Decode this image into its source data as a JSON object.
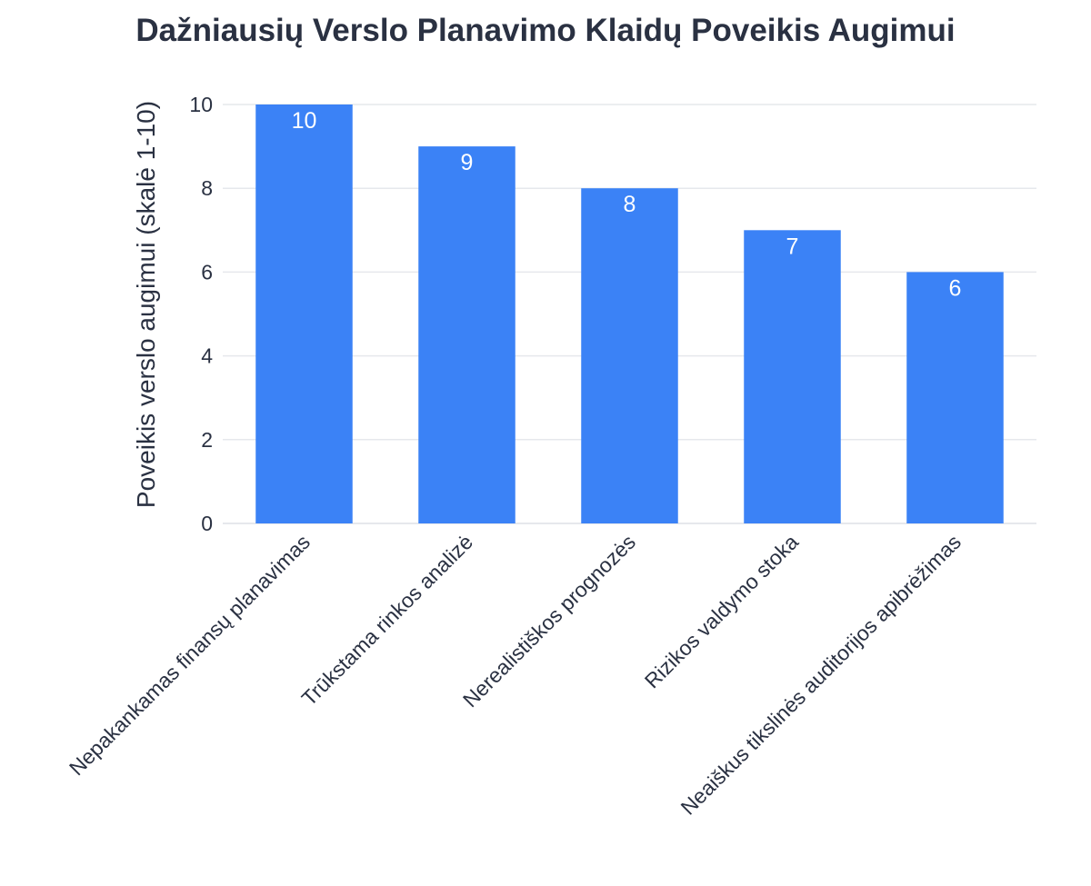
{
  "chart_data": {
    "type": "bar",
    "title": "Dažniausių Verslo Planavimo Klaidų Poveikis Augimui",
    "xlabel": "",
    "ylabel": "Poveikis verslo augimui (skalė 1-10)",
    "categories": [
      "Nepakankamas finansų planavimas",
      "Trūkstama rinkos analizė",
      "Nerealistiškos prognozės",
      "Rizikos valdymo stoka",
      "Neaiškus tikslinės auditorijos apibrėžimas"
    ],
    "values": [
      10,
      9,
      8,
      7,
      6
    ],
    "ylim": [
      0,
      10
    ],
    "yticks": [
      0,
      2,
      4,
      6,
      8,
      10
    ],
    "bar_color": "#3b82f6",
    "grid": true
  }
}
